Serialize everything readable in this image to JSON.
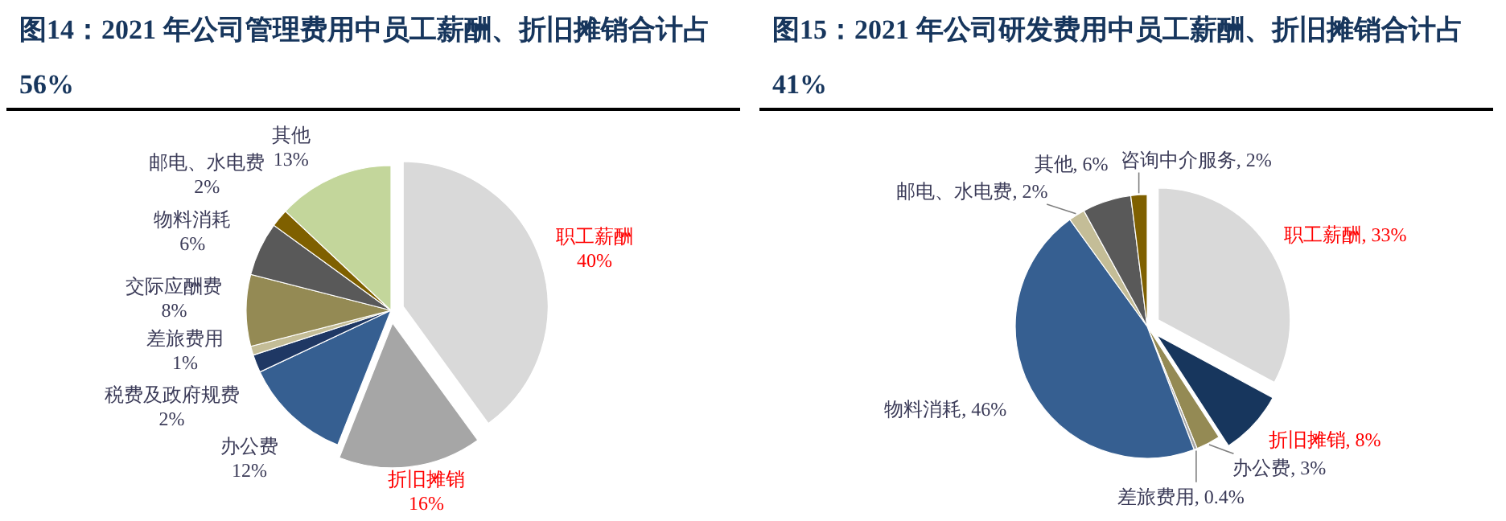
{
  "chart_data": [
    {
      "type": "pie",
      "title": "图14：2021 年公司管理费用中员工薪酬、折旧摊销合计占 56%",
      "categories": [
        "职工薪酬",
        "折旧摊销",
        "办公费",
        "税费及政府规费",
        "差旅费用",
        "交际应酬费",
        "物料消耗",
        "邮电、水电费",
        "其他"
      ],
      "values": [
        40,
        16,
        12,
        2,
        1,
        8,
        6,
        2,
        13
      ],
      "value_labels": [
        "40%",
        "16%",
        "12%",
        "2%",
        "1%",
        "8%",
        "6%",
        "2%",
        "13%"
      ],
      "colors": [
        "#d9d9d9",
        "#a6a6a6",
        "#365f91",
        "#1f3864",
        "#c4bd97",
        "#948a54",
        "#595959",
        "#7f6000",
        "#c3d69b"
      ]
    },
    {
      "type": "pie",
      "title": "图15：2021 年公司研发费用中员工薪酬、折旧摊销合计占 41%",
      "categories": [
        "职工薪酬",
        "折旧摊销",
        "办公费",
        "差旅费用",
        "物料消耗",
        "邮电、水电费",
        "其他",
        "咨询中介服务"
      ],
      "values": [
        33,
        8,
        3,
        0.4,
        46,
        2,
        6,
        2
      ],
      "value_labels": [
        "33%",
        "8%",
        "3%",
        "0.4%",
        "46%",
        "2%",
        "6%",
        "2%"
      ],
      "colors": [
        "#d9d9d9",
        "#17365d",
        "#948a54",
        "#a6a6a6",
        "#365f91",
        "#c4bd97",
        "#595959",
        "#7f6000"
      ]
    }
  ]
}
